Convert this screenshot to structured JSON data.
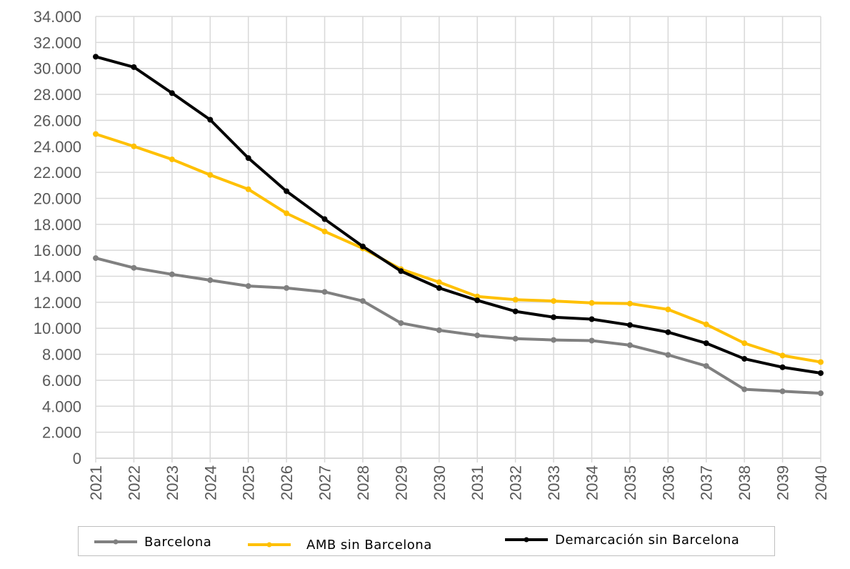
{
  "chart_data": {
    "type": "line",
    "title": "",
    "xlabel": "",
    "ylabel": "",
    "ylim": [
      0,
      34000
    ],
    "yticks": [
      0,
      2000,
      4000,
      6000,
      8000,
      10000,
      12000,
      14000,
      16000,
      18000,
      20000,
      22000,
      24000,
      26000,
      28000,
      30000,
      32000,
      34000
    ],
    "ytick_labels": [
      "0",
      "2.000",
      "4.000",
      "6.000",
      "8.000",
      "10.000",
      "12.000",
      "14.000",
      "16.000",
      "18.000",
      "20.000",
      "22.000",
      "24.000",
      "26.000",
      "28.000",
      "30.000",
      "32.000",
      "34.000"
    ],
    "grid": true,
    "legend_position": "bottom",
    "x": [
      "2021",
      "2022",
      "2023",
      "2024",
      "2025",
      "2026",
      "2027",
      "2028",
      "2029",
      "2030",
      "2031",
      "2032",
      "2033",
      "2034",
      "2035",
      "2036",
      "2037",
      "2038",
      "2039",
      "2040"
    ],
    "series": [
      {
        "name": "Barcelona",
        "color": "#808080",
        "values": [
          15400,
          14650,
          14150,
          13700,
          13250,
          13100,
          12800,
          12100,
          10400,
          9850,
          9450,
          9200,
          9100,
          9050,
          8700,
          7950,
          7100,
          5300,
          5150,
          5000
        ]
      },
      {
        "name": "AMB sin Barcelona",
        "color": "#FFC000",
        "values": [
          24950,
          24000,
          23000,
          21800,
          20700,
          18850,
          17450,
          16150,
          14550,
          13550,
          12450,
          12200,
          12100,
          11950,
          11900,
          11450,
          10300,
          8850,
          7900,
          7400
        ]
      },
      {
        "name": "Demarcación sin Barcelona",
        "color": "#000000",
        "values": [
          30900,
          30100,
          28100,
          26050,
          23100,
          20550,
          18400,
          16300,
          14400,
          13100,
          12150,
          11300,
          10850,
          10700,
          10250,
          9700,
          8850,
          7650,
          7000,
          6550
        ]
      }
    ]
  }
}
